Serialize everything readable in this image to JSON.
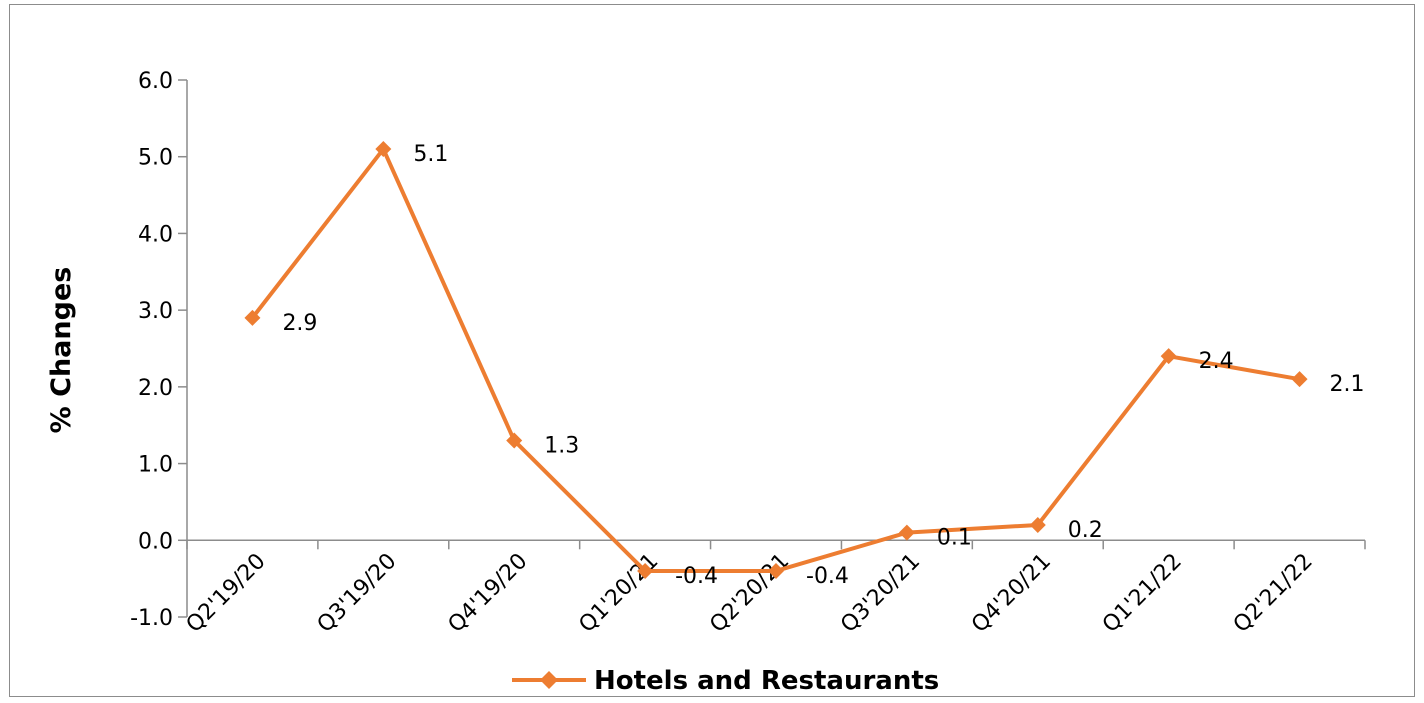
{
  "chart_data": {
    "type": "line",
    "categories": [
      "Q2'19/20",
      "Q3'19/20",
      "Q4'19/20",
      "Q1'20/21",
      "Q2'20/21",
      "Q3'20/21",
      "Q4'20/21",
      "Q1'21/22",
      "Q2'21/22"
    ],
    "series": [
      {
        "name": "Hotels and Restaurants",
        "values": [
          2.9,
          5.1,
          1.3,
          -0.4,
          -0.4,
          0.1,
          0.2,
          2.4,
          2.1
        ],
        "data_labels": [
          "2.9",
          "5.1",
          "1.3",
          "-0.4",
          "-0.4",
          "0.1",
          "0.2",
          "2.4",
          "2.1"
        ],
        "color": "#ED7D31",
        "marker": "diamond"
      }
    ],
    "ylabel": "% Changes",
    "ylim": [
      -1.0,
      6.0
    ],
    "ytick_labels": [
      "-1.0",
      "0.0",
      "1.0",
      "2.0",
      "3.0",
      "4.0",
      "5.0",
      "6.0"
    ],
    "grid": false,
    "legend_position": "bottom"
  }
}
